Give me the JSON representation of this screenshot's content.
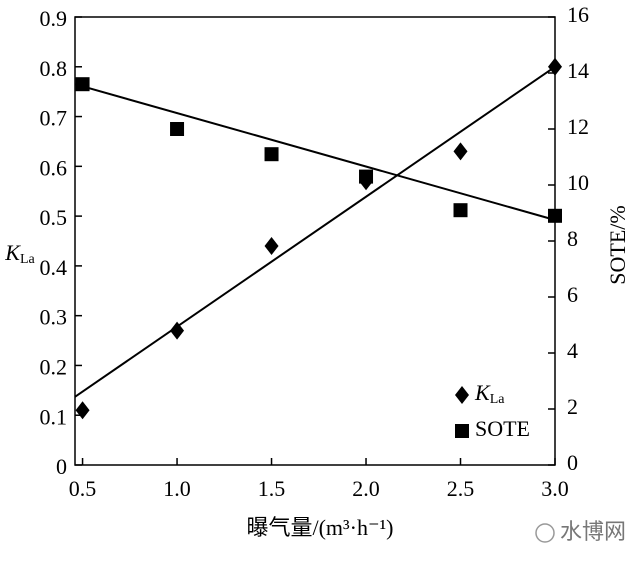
{
  "chart_data": {
    "type": "scatter",
    "x_label": "曝气量/(m³·h⁻¹)",
    "y_label": {
      "symbol": "K",
      "subscript": "La"
    },
    "y2_label": "SOTE/%",
    "x": [
      0.5,
      1.0,
      1.5,
      2.0,
      2.5,
      3.0
    ],
    "series": [
      {
        "name": "K",
        "name_subscript": "La",
        "marker": "diamond",
        "color": "#000000",
        "values": [
          0.11,
          0.27,
          0.44,
          0.57,
          0.63,
          0.8
        ],
        "trend": {
          "x": [
            0.46,
            3.0
          ],
          "values": [
            0.137,
            0.8
          ]
        }
      },
      {
        "name": "SOTE",
        "marker": "square",
        "color": "#000000",
        "axis": "y2",
        "values": [
          13.6,
          12.0,
          11.1,
          10.3,
          9.1,
          8.9
        ],
        "trend": {
          "x": [
            0.46,
            3.0
          ],
          "values": [
            13.6,
            8.75
          ]
        }
      }
    ],
    "xlim": [
      0.46,
      3.0
    ],
    "xticks": [
      0.5,
      {
        "value": 1,
        "label": "1.0"
      },
      1.5,
      {
        "value": 2,
        "label": "2.0"
      },
      2.5,
      {
        "value": 3,
        "label": "3.0"
      }
    ],
    "ylim": [
      0,
      0.9
    ],
    "yticks": [
      0,
      0.1,
      0.2,
      0.3,
      0.4,
      0.5,
      0.6,
      0.7,
      0.8,
      0.9
    ],
    "y2lim": [
      0,
      16
    ],
    "y2ticks": [
      0,
      2,
      4,
      6,
      8,
      10,
      12,
      14,
      16
    ],
    "legend": "lower-right",
    "watermark": "水博网"
  }
}
